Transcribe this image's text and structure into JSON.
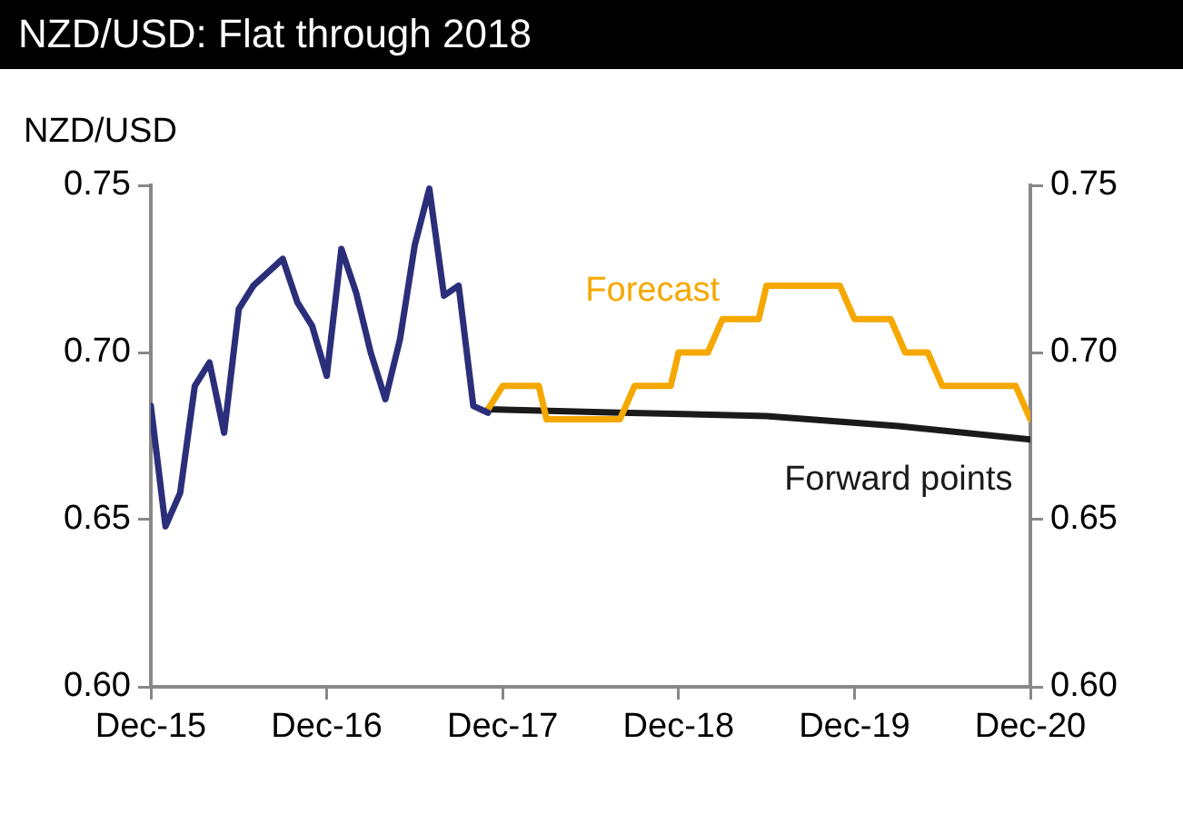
{
  "chart_data": {
    "type": "line",
    "title": "NZD/USD: Flat through 2018",
    "ylabel": "NZD/USD",
    "xlim": [
      "2015-12",
      "2020-12"
    ],
    "xticks": [
      {
        "value": "2015-12",
        "label": "Dec-15"
      },
      {
        "value": "2016-12",
        "label": "Dec-16"
      },
      {
        "value": "2017-12",
        "label": "Dec-17"
      },
      {
        "value": "2018-12",
        "label": "Dec-18"
      },
      {
        "value": "2019-12",
        "label": "Dec-19"
      },
      {
        "value": "2020-12",
        "label": "Dec-20"
      }
    ],
    "ylim": [
      0.6,
      0.75
    ],
    "yticks": [
      {
        "value": 0.6,
        "label": "0.60"
      },
      {
        "value": 0.65,
        "label": "0.65"
      },
      {
        "value": 0.7,
        "label": "0.70"
      },
      {
        "value": 0.75,
        "label": "0.75"
      }
    ],
    "y2lim": [
      0.6,
      0.75
    ],
    "y2ticks": [
      {
        "value": 0.6,
        "label": "0.60"
      },
      {
        "value": 0.65,
        "label": "0.65"
      },
      {
        "value": 0.7,
        "label": "0.70"
      },
      {
        "value": 0.75,
        "label": "0.75"
      }
    ],
    "grid": false,
    "legend": false,
    "marker": "none",
    "line_style": "solid",
    "series": [
      {
        "color": "#2b2f7a",
        "x": [
          "2015-12",
          "2016-01",
          "2016-02",
          "2016-03",
          "2016-04",
          "2016-05",
          "2016-06",
          "2016-07",
          "2016-08",
          "2016-09",
          "2016-10",
          "2016-11",
          "2016-12",
          "2017-01",
          "2017-02",
          "2017-03",
          "2017-04",
          "2017-05",
          "2017-06",
          "2017-07",
          "2017-08",
          "2017-09",
          "2017-10",
          "2017-11"
        ],
        "values": [
          0.684,
          0.648,
          0.658,
          0.69,
          0.697,
          0.676,
          0.713,
          0.72,
          0.724,
          0.728,
          0.715,
          0.708,
          0.693,
          0.731,
          0.718,
          0.7,
          0.686,
          0.704,
          0.732,
          0.749,
          0.717,
          0.72,
          0.684,
          0.682
        ]
      },
      {
        "name": "Forecast",
        "color": "#f5a800",
        "x": [
          "2017-11",
          "2017-12",
          "2018-02-15",
          "2018-03",
          "2018-08",
          "2018-09",
          "2018-11-15",
          "2018-12",
          "2019-02",
          "2019-03",
          "2019-05-15",
          "2019-06",
          "2019-11",
          "2019-12",
          "2020-02-15",
          "2020-03-15",
          "2020-05",
          "2020-06",
          "2020-11",
          "2020-12"
        ],
        "values": [
          0.683,
          0.69,
          0.69,
          0.68,
          0.68,
          0.69,
          0.69,
          0.7,
          0.7,
          0.71,
          0.71,
          0.72,
          0.72,
          0.71,
          0.71,
          0.7,
          0.7,
          0.69,
          0.69,
          0.68
        ]
      },
      {
        "name": "Forward points",
        "color": "#1a1a1a",
        "x": [
          "2017-11",
          "2018-08",
          "2019-06",
          "2020-03",
          "2020-12"
        ],
        "values": [
          0.683,
          0.682,
          0.681,
          0.678,
          0.674
        ]
      }
    ]
  }
}
